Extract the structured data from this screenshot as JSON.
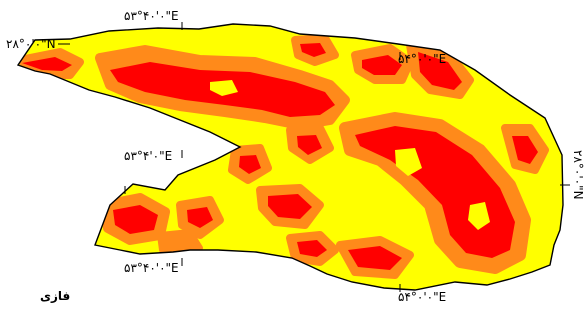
{
  "map": {
    "coordinate_labels": {
      "top_a": "۵۳°۴۰'۰\"E",
      "top_b": "۵۴°۰'۰\"E",
      "mid_a": "۵۳°۴'۰\"E",
      "bottom_a": "۵۳°۴۰'۰\"E",
      "bottom_b": "۵۴°۰'۰\"E",
      "left_lat": "۲۸°۰'۰\"N",
      "right_lat": "۲۸°۰'۰\"N"
    },
    "legend": {
      "label": "فازی"
    },
    "colors": {
      "background": "#ffffff",
      "zone_high": "#ff0000",
      "zone_edge": "#ff8a1a",
      "zone_base": "#ffff00",
      "outline": "#000000"
    }
  }
}
